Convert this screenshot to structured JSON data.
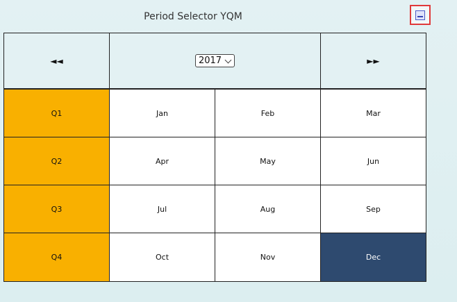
{
  "title": "Period Selector YQM",
  "header": {
    "prev_label": "◄◄",
    "next_label": "►►",
    "year": "2017"
  },
  "quarters": [
    {
      "label": "Q1",
      "months": [
        "Jan",
        "Feb",
        "Mar"
      ]
    },
    {
      "label": "Q2",
      "months": [
        "Apr",
        "May",
        "Jun"
      ]
    },
    {
      "label": "Q3",
      "months": [
        "Jul",
        "Aug",
        "Sep"
      ]
    },
    {
      "label": "Q4",
      "months": [
        "Oct",
        "Nov",
        "Dec"
      ]
    }
  ],
  "selected_month": "Dec",
  "colors": {
    "quarter_bg": "#f9b000",
    "selected_bg": "#2e4a6f",
    "header_bg": "#e3f1f3"
  }
}
